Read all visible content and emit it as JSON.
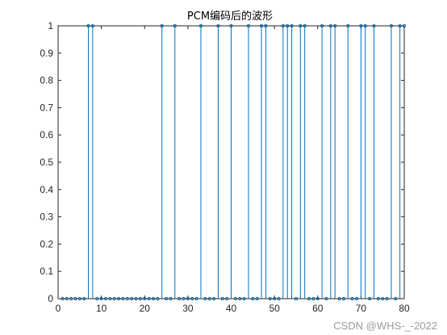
{
  "chart_data": {
    "type": "stem",
    "title": "PCM编码后的波形",
    "xlabel": "",
    "ylabel": "",
    "xlim": [
      0,
      80
    ],
    "ylim": [
      0,
      1
    ],
    "xticks": [
      0,
      10,
      20,
      30,
      40,
      50,
      60,
      70,
      80
    ],
    "yticks": [
      0,
      0.1,
      0.2,
      0.3,
      0.4,
      0.5,
      0.6,
      0.7,
      0.8,
      0.9,
      1
    ],
    "grid": false,
    "line_color": "#0072BD",
    "ones_at_x": [
      7,
      8,
      24,
      27,
      33,
      37,
      40,
      44,
      47,
      48,
      52,
      53,
      54,
      56,
      57,
      61,
      63,
      64,
      67,
      70,
      71,
      73,
      77,
      79,
      80
    ],
    "zeros_at_x": "all other integers 1-80"
  },
  "watermark": "CSDN @WHS-_-2022"
}
